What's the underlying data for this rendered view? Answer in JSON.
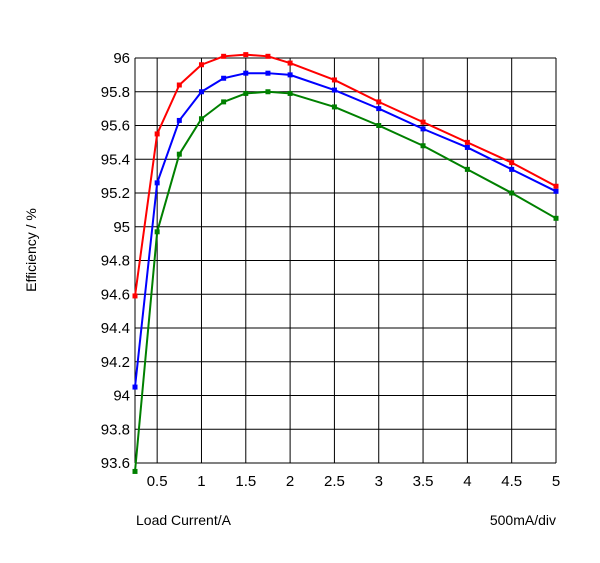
{
  "chart_data": {
    "type": "line",
    "title": "",
    "xlabel": "Load Current/A",
    "ylabel": "Efficiency / %",
    "scale_note": "500mA/div",
    "xlim": [
      0.25,
      5
    ],
    "ylim": [
      93.6,
      96
    ],
    "grid": true,
    "x_ticks": [
      "0.5",
      "1",
      "1.5",
      "2",
      "2.5",
      "3",
      "3.5",
      "4",
      "4.5",
      "5"
    ],
    "y_ticks": [
      "93.6",
      "93.8",
      "94",
      "94.2",
      "94.4",
      "94.6",
      "94.8",
      "95",
      "95.2",
      "95.4",
      "95.6",
      "95.8",
      "96"
    ],
    "series": [
      {
        "color": "#ff0000",
        "x": [
          0.25,
          0.5,
          0.75,
          1.0,
          1.25,
          1.5,
          1.75,
          2.0,
          2.5,
          3.0,
          3.5,
          4.0,
          4.5,
          5.0
        ],
        "y": [
          94.59,
          95.55,
          95.84,
          95.96,
          96.01,
          96.02,
          96.01,
          95.97,
          95.87,
          95.74,
          95.62,
          95.5,
          95.38,
          95.24
        ]
      },
      {
        "color": "#0000ff",
        "x": [
          0.25,
          0.5,
          0.75,
          1.0,
          1.25,
          1.5,
          1.75,
          2.0,
          2.5,
          3.0,
          3.5,
          4.0,
          4.5,
          5.0
        ],
        "y": [
          94.05,
          95.26,
          95.63,
          95.8,
          95.88,
          95.91,
          95.91,
          95.9,
          95.81,
          95.7,
          95.58,
          95.47,
          95.34,
          95.21
        ]
      },
      {
        "color": "#008000",
        "x": [
          0.25,
          0.5,
          0.75,
          1.0,
          1.25,
          1.5,
          1.75,
          2.0,
          2.5,
          3.0,
          3.5,
          4.0,
          4.5,
          5.0
        ],
        "y": [
          93.55,
          94.97,
          95.43,
          95.64,
          95.74,
          95.79,
          95.8,
          95.79,
          95.71,
          95.6,
          95.48,
          95.34,
          95.2,
          95.05
        ]
      }
    ]
  }
}
